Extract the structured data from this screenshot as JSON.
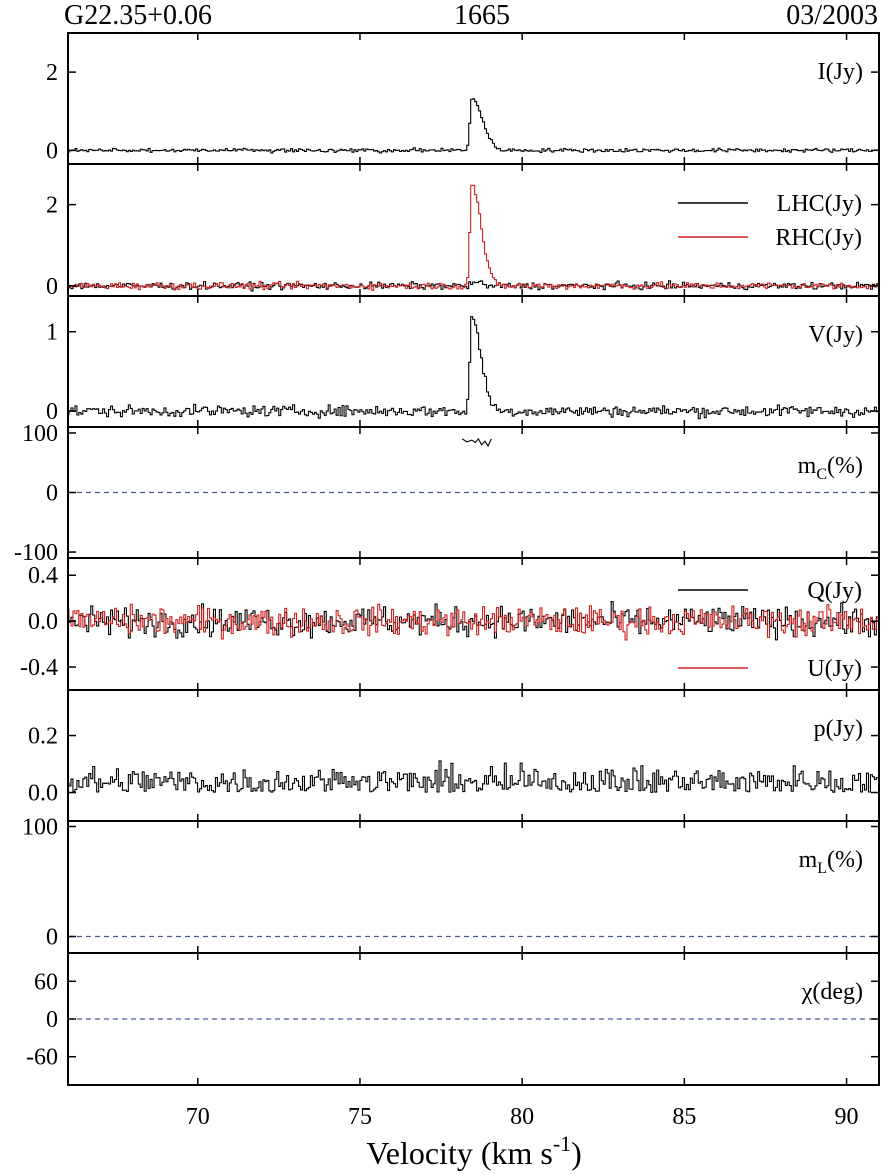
{
  "header": {
    "source": "G22.35+0.06",
    "frequency": "1665",
    "epoch": "03/2003"
  },
  "chart_data": {
    "type": "line",
    "xlabel": "Velocity (km s",
    "xlabel_sup": "-1",
    "xlabel_tail": ")",
    "xlim": [
      66.0,
      91.0
    ],
    "xticks": [
      70,
      75,
      80,
      85,
      90
    ],
    "xtick_labels": [
      "70",
      "75",
      "80",
      "85",
      "90"
    ],
    "colors": {
      "black": "#000000",
      "red": "#cc2222",
      "zero_line": "#4a5a9a"
    },
    "panels": [
      {
        "id": "I",
        "label_main": "I(Jy)",
        "label_sub": "",
        "label_tail": "",
        "ylim": [
          -0.35,
          3.0
        ],
        "yticks": [
          0,
          2
        ],
        "ytick_labels": [
          "0",
          "2"
        ],
        "zero_line": false,
        "series": [
          {
            "key": "lhc",
            "color": "black",
            "profile": {
              "baseline": 0.0,
              "noise": 0.035,
              "peak_v": 78.45,
              "peak_amp": 1.33,
              "rise": 0.06,
              "decay": 0.32
            }
          }
        ]
      },
      {
        "id": "LR",
        "label_main": "",
        "label_sub": "",
        "label_tail": "",
        "ylim": [
          -0.25,
          3.0
        ],
        "yticks": [
          0,
          2
        ],
        "ytick_labels": [
          "0",
          "2"
        ],
        "zero_line": false,
        "legend": [
          {
            "label": "LHC(Jy)",
            "color": "black"
          },
          {
            "label": "RHC(Jy)",
            "color": "red"
          }
        ],
        "series": [
          {
            "key": "lhc2",
            "color": "black",
            "profile": {
              "baseline": 0.0,
              "noise": 0.06,
              "peak_v": 78.5,
              "peak_amp": 0.12,
              "rise": 0.05,
              "decay": 0.15
            }
          },
          {
            "key": "rhc",
            "color": "red",
            "profile": {
              "baseline": 0.0,
              "noise": 0.06,
              "peak_v": 78.45,
              "peak_amp": 2.5,
              "rise": 0.06,
              "decay": 0.28
            }
          }
        ]
      },
      {
        "id": "V",
        "label_main": "V(Jy)",
        "label_sub": "",
        "label_tail": "",
        "ylim": [
          -0.2,
          1.45
        ],
        "yticks": [
          0,
          1
        ],
        "ytick_labels": [
          "0",
          "1"
        ],
        "zero_line": false,
        "series": [
          {
            "key": "v",
            "color": "black",
            "profile": {
              "baseline": 0.0,
              "noise": 0.05,
              "peak_v": 78.45,
              "peak_amp": 1.17,
              "rise": 0.06,
              "decay": 0.28
            }
          }
        ]
      },
      {
        "id": "mc",
        "label_main": "m",
        "label_sub": "C",
        "label_tail": "(%)",
        "ylim": [
          -110,
          110
        ],
        "yticks": [
          -100,
          0,
          100
        ],
        "ytick_labels": [
          "-100",
          "0",
          "100"
        ],
        "zero_line": true,
        "segments": [
          {
            "color": "black",
            "x": [
              78.15,
              78.3,
              78.45,
              78.55,
              78.65,
              78.75,
              78.85,
              78.95,
              79.05
            ],
            "y": [
              90,
              85,
              88,
              84,
              90,
              80,
              86,
              78,
              90
            ]
          }
        ]
      },
      {
        "id": "QU",
        "label_main": "",
        "label_sub": "",
        "label_tail": "",
        "ylim": [
          -0.6,
          0.55
        ],
        "yticks": [
          -0.4,
          0.0,
          0.4
        ],
        "ytick_labels": [
          "-0.4",
          "0.0",
          "0.4"
        ],
        "zero_line": false,
        "legend": [
          {
            "label": "Q(Jy)",
            "color": "black"
          },
          {
            "label": "U(Jy)",
            "color": "red"
          }
        ],
        "series": [
          {
            "key": "q",
            "color": "black",
            "profile": {
              "baseline": 0.0,
              "noise": 0.09
            }
          },
          {
            "key": "u",
            "color": "red",
            "profile": {
              "baseline": 0.0,
              "noise": 0.09
            }
          }
        ]
      },
      {
        "id": "p",
        "label_main": "p(Jy)",
        "label_sub": "",
        "label_tail": "",
        "ylim": [
          -0.1,
          0.36
        ],
        "yticks": [
          0.0,
          0.2
        ],
        "ytick_labels": [
          "0.0",
          "0.2"
        ],
        "zero_line": false,
        "series": [
          {
            "key": "p",
            "color": "black",
            "profile": {
              "baseline": 0.035,
              "noise": 0.04,
              "positive": true
            }
          }
        ]
      },
      {
        "id": "mL",
        "label_main": "m",
        "label_sub": "L",
        "label_tail": "(%)",
        "ylim": [
          -15,
          105
        ],
        "yticks": [
          0,
          100
        ],
        "ytick_labels": [
          "0",
          "100"
        ],
        "zero_line": true
      },
      {
        "id": "chi",
        "label_main": "χ(deg)",
        "label_sub": "",
        "label_tail": "",
        "ylim": [
          -105,
          105
        ],
        "yticks": [
          -60,
          0,
          60
        ],
        "ytick_labels": [
          "-60",
          "0",
          "60"
        ],
        "zero_line": true
      }
    ]
  }
}
